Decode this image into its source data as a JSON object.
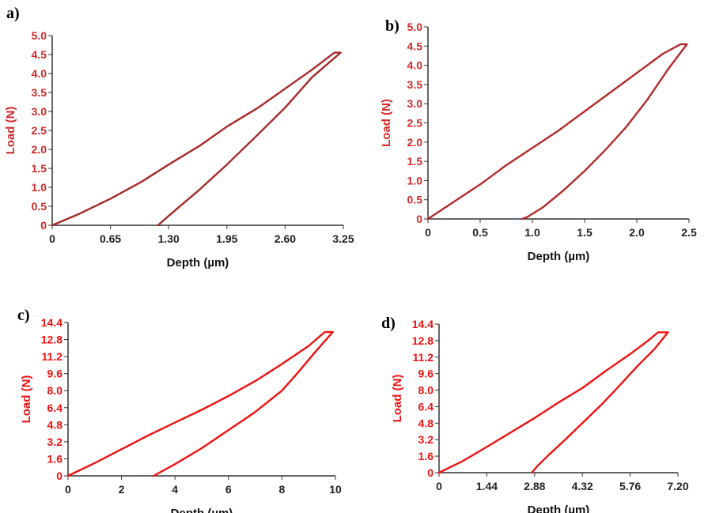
{
  "chart_data": [
    {
      "panel": "a)",
      "type": "line",
      "xlabel": "Depth (µm)",
      "ylabel": "Load (N)",
      "xticks": [
        "0",
        "0.65",
        "1.30",
        "1.95",
        "2.60",
        "3.25"
      ],
      "yticks": [
        "0",
        "0.5",
        "1.0",
        "1.5",
        "2.0",
        "2.5",
        "3.0",
        "3.5",
        "4.0",
        "4.5",
        "5.0"
      ],
      "xlim": [
        0,
        3.25
      ],
      "ylim": [
        0,
        5.0
      ],
      "color": "#a52a2a",
      "tick_color": "#cc2a2a",
      "series": [
        {
          "x": [
            0,
            0.3,
            0.65,
            1.0,
            1.3,
            1.65,
            1.95,
            2.3,
            2.6,
            2.9,
            3.15,
            3.22
          ],
          "y": [
            0,
            0.3,
            0.7,
            1.15,
            1.6,
            2.1,
            2.6,
            3.1,
            3.6,
            4.1,
            4.55,
            4.55
          ]
        },
        {
          "x": [
            3.22,
            2.9,
            2.6,
            2.3,
            1.95,
            1.65,
            1.35,
            1.18
          ],
          "y": [
            4.55,
            3.9,
            3.1,
            2.4,
            1.6,
            0.95,
            0.35,
            0
          ]
        }
      ]
    },
    {
      "panel": "b)",
      "type": "line",
      "xlabel": "Depth (µm)",
      "ylabel": "Load (N)",
      "xticks": [
        "0",
        "0.5",
        "1.0",
        "1.5",
        "2.0",
        "2.5"
      ],
      "yticks": [
        "0",
        "0.5",
        "1.0",
        "1.5",
        "2.0",
        "2.5",
        "3.0",
        "3.5",
        "4.0",
        "4.5",
        "5.0"
      ],
      "xlim": [
        0,
        2.5
      ],
      "ylim": [
        0,
        5.0
      ],
      "color": "#b02a2a",
      "tick_color": "#d42a2a",
      "series": [
        {
          "x": [
            0,
            0.25,
            0.5,
            0.75,
            1.0,
            1.25,
            1.5,
            1.75,
            2.0,
            2.25,
            2.42,
            2.48
          ],
          "y": [
            0,
            0.45,
            0.9,
            1.4,
            1.85,
            2.3,
            2.8,
            3.3,
            3.8,
            4.3,
            4.55,
            4.55
          ]
        },
        {
          "x": [
            2.48,
            2.3,
            2.1,
            1.9,
            1.7,
            1.5,
            1.3,
            1.1,
            0.95,
            0.9
          ],
          "y": [
            4.55,
            3.9,
            3.1,
            2.4,
            1.8,
            1.25,
            0.75,
            0.3,
            0.05,
            0
          ]
        }
      ]
    },
    {
      "panel": "c)",
      "type": "line",
      "xlabel": "Depth (µm)",
      "ylabel": "Load (N)",
      "xticks": [
        "0",
        "2",
        "4",
        "6",
        "8",
        "10"
      ],
      "yticks": [
        "0",
        "1.6",
        "3.2",
        "4.8",
        "6.4",
        "8.0",
        "9.6",
        "11.2",
        "12.8",
        "14.4"
      ],
      "xlim": [
        0,
        10
      ],
      "ylim": [
        0,
        14.4
      ],
      "color": "#ee1111",
      "tick_color": "#ee1111",
      "series": [
        {
          "x": [
            0,
            1,
            2,
            3,
            4,
            5,
            6,
            7,
            8,
            9,
            9.6,
            9.9
          ],
          "y": [
            0,
            1.2,
            2.5,
            3.8,
            5.0,
            6.2,
            7.5,
            8.9,
            10.5,
            12.2,
            13.5,
            13.5
          ]
        },
        {
          "x": [
            9.9,
            9.2,
            8.6,
            8.0,
            7.5,
            7.0,
            6.0,
            5.0,
            4.0,
            3.2
          ],
          "y": [
            13.5,
            11.5,
            9.7,
            8.0,
            7.0,
            6.0,
            4.3,
            2.6,
            1.1,
            0
          ]
        }
      ]
    },
    {
      "panel": "d)",
      "type": "line",
      "xlabel": "Depth (µm)",
      "ylabel": "Load (N)",
      "xticks": [
        "0",
        "1.44",
        "2.88",
        "4.32",
        "5.76",
        "7.20"
      ],
      "yticks": [
        "0",
        "1.6",
        "3.2",
        "4.8",
        "6.4",
        "8.0",
        "9.6",
        "11.2",
        "12.8",
        "14.4"
      ],
      "xlim": [
        0,
        7.2
      ],
      "ylim": [
        0,
        14.4
      ],
      "color": "#ee1111",
      "tick_color": "#ee1111",
      "series": [
        {
          "x": [
            0,
            0.7,
            1.44,
            2.16,
            2.88,
            3.6,
            4.32,
            5.04,
            5.76,
            6.3,
            6.6,
            6.9
          ],
          "y": [
            0,
            1.1,
            2.5,
            3.9,
            5.3,
            6.8,
            8.2,
            9.9,
            11.5,
            12.8,
            13.6,
            13.6
          ]
        },
        {
          "x": [
            6.9,
            6.5,
            6.0,
            5.4,
            4.9,
            4.32,
            3.8,
            3.3,
            2.95,
            2.8
          ],
          "y": [
            13.6,
            12.0,
            10.4,
            8.3,
            6.6,
            4.8,
            3.2,
            1.7,
            0.6,
            0
          ]
        }
      ]
    }
  ]
}
